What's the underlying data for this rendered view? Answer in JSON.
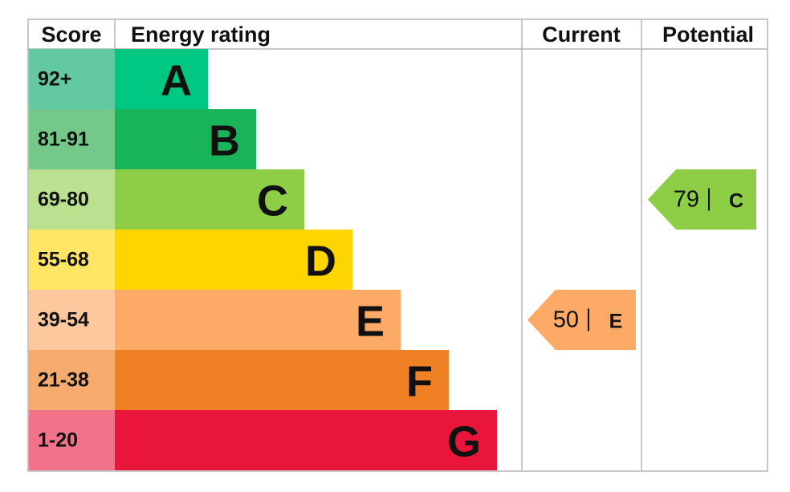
{
  "header": {
    "score": "Score",
    "rating": "Energy rating",
    "current": "Current",
    "potential": "Potential"
  },
  "rows": [
    {
      "score": "92+",
      "band": "A",
      "color": "#00c781",
      "score_color": "#62c9a1"
    },
    {
      "score": "81-91",
      "band": "B",
      "color": "#19b459",
      "score_color": "#74c98a"
    },
    {
      "score": "69-80",
      "band": "C",
      "color": "#8dce46",
      "score_color": "#bbe08f"
    },
    {
      "score": "55-68",
      "band": "D",
      "color": "#ffd500",
      "score_color": "#ffe566"
    },
    {
      "score": "39-54",
      "band": "E",
      "color": "#fcaa65",
      "score_color": "#fdc89d"
    },
    {
      "score": "21-38",
      "band": "F",
      "color": "#ef8023",
      "score_color": "#f5ab6d"
    },
    {
      "score": "1-20",
      "band": "G",
      "color": "#e9153b",
      "score_color": "#f27289"
    }
  ],
  "current": {
    "score": 50,
    "band": "E"
  },
  "potential": {
    "score": 79,
    "band": "C"
  }
}
